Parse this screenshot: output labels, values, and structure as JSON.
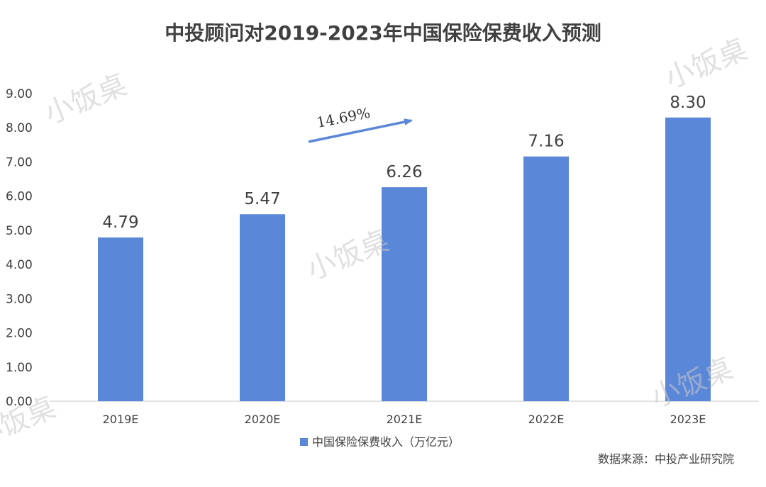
{
  "chart_data": {
    "type": "bar",
    "title": "中投顾问对2019-2023年中国保险保费收入预测",
    "categories": [
      "2019E",
      "2020E",
      "2021E",
      "2022E",
      "2023E"
    ],
    "series": [
      {
        "name": "中国保险保费收入（万亿元）",
        "values": [
          4.79,
          5.47,
          6.26,
          7.16,
          8.3
        ],
        "color": "#5b87d9"
      }
    ],
    "data_labels": [
      "4.79",
      "5.47",
      "6.26",
      "7.16",
      "8.30"
    ],
    "ylim": [
      0,
      9
    ],
    "yticks": [
      "0.00",
      "1.00",
      "2.00",
      "3.00",
      "4.00",
      "5.00",
      "6.00",
      "7.00",
      "8.00",
      "9.00"
    ],
    "grid": false,
    "legend_position": "bottom",
    "annotation": {
      "text": "14.69%",
      "arrow_color": "#5b87d9"
    }
  },
  "source": "数据来源：中投产业研究院",
  "watermark": "小饭桌"
}
